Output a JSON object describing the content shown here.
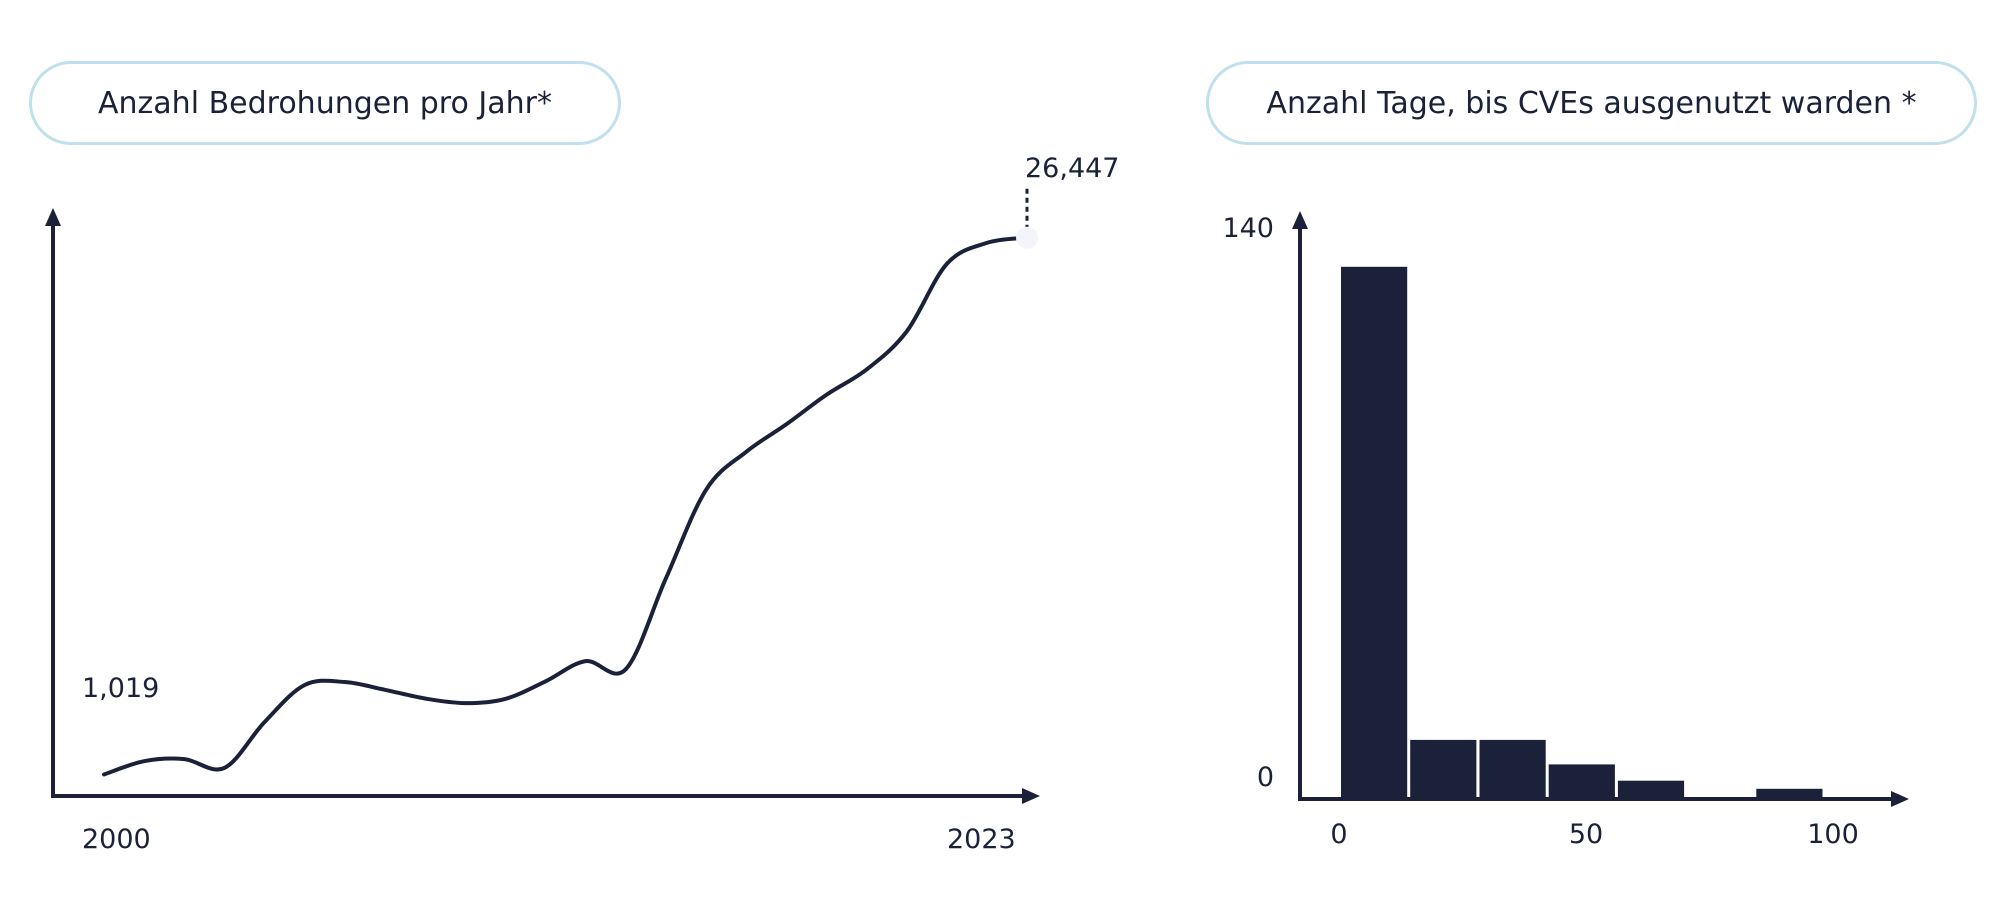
{
  "colors": {
    "ink": "#1b2138",
    "pill_border": "#bfe0ec",
    "background": "#ffffff"
  },
  "chart_data": [
    {
      "type": "line",
      "title": "Anzahl Bedrohungen pro Jahr*",
      "xlabel": "",
      "ylabel": "",
      "x": [
        2000,
        2001,
        2002,
        2003,
        2004,
        2005,
        2006,
        2007,
        2008,
        2009,
        2010,
        2011,
        2012,
        2013,
        2014,
        2015,
        2016,
        2017,
        2018,
        2019,
        2020,
        2021,
        2022,
        2023
      ],
      "values": [
        1019,
        1650,
        1750,
        1330,
        3500,
        5260,
        5400,
        5030,
        4620,
        4400,
        4600,
        5430,
        6390,
        6000,
        10300,
        14500,
        16300,
        17600,
        19000,
        20200,
        22000,
        25200,
        26200,
        26447
      ],
      "xlim": [
        2000,
        2023
      ],
      "ylim": [
        0,
        27000
      ],
      "x_tick_labels": [
        "2000",
        "2023"
      ],
      "point_labels": [
        {
          "x": 2000,
          "text": "1,019"
        },
        {
          "x": 2023,
          "text": "26,447"
        }
      ],
      "grid": false,
      "legend": "none"
    },
    {
      "type": "bar",
      "title": "Anzahl Tage, bis CVEs ausgenutzt warden *",
      "xlabel": "",
      "ylabel": "",
      "bins": [
        [
          0,
          14
        ],
        [
          14,
          28
        ],
        [
          28,
          42
        ],
        [
          42,
          56
        ],
        [
          56,
          70
        ],
        [
          70,
          84
        ],
        [
          84,
          98
        ]
      ],
      "values": [
        130,
        14,
        14,
        8,
        4,
        0,
        2
      ],
      "xlim": [
        -8,
        115
      ],
      "ylim": [
        0,
        140
      ],
      "x_ticks": [
        0,
        50,
        100
      ],
      "x_tick_labels": [
        "0",
        "50",
        "100"
      ],
      "y_tick_labels": [
        "0",
        "140"
      ],
      "grid": false,
      "legend": "none"
    }
  ]
}
